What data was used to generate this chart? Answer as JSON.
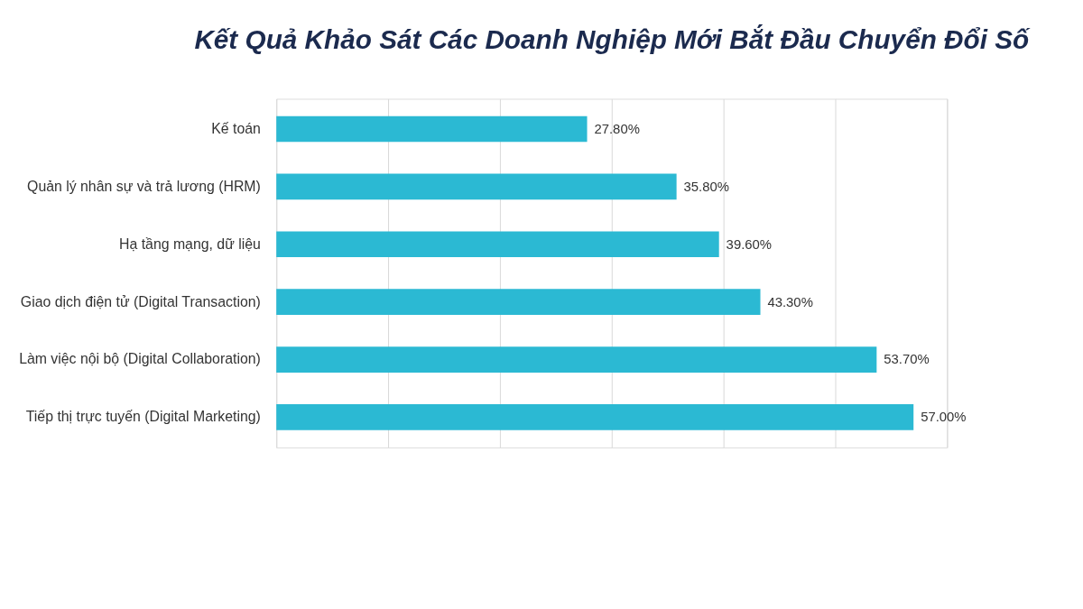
{
  "chart_data": {
    "type": "bar",
    "orientation": "horizontal",
    "title": "Kết Quả Khảo Sát Các Doanh Nghiệp Mới Bắt Đầu Chuyển Đổi Số",
    "categories": [
      "Kế toán",
      "Quản lý nhân sự và trả lương (HRM)",
      "Hạ tầng mạng, dữ liệu",
      "Giao dịch điện tử (Digital Transaction)",
      "Làm việc nội bộ (Digital Collaboration)",
      "Tiếp thị trực tuyến (Digital Marketing)"
    ],
    "values": [
      27.8,
      35.8,
      39.6,
      43.3,
      53.7,
      57.0
    ],
    "value_labels": [
      "27.80%",
      "35.80%",
      "39.60%",
      "43.30%",
      "53.70%",
      "57.00%"
    ],
    "color": "#2bb9d3",
    "xlim": [
      0,
      60
    ],
    "xticks": [
      {
        "value": 0,
        "label": null
      },
      {
        "value": 10,
        "label": null
      },
      {
        "value": 20,
        "label": null
      },
      {
        "value": 30,
        "label": null
      },
      {
        "value": 40,
        "label": null
      },
      {
        "value": 50,
        "label": null
      },
      {
        "value": 60,
        "label": null
      }
    ],
    "tick_labels": "y",
    "grid": "x"
  }
}
